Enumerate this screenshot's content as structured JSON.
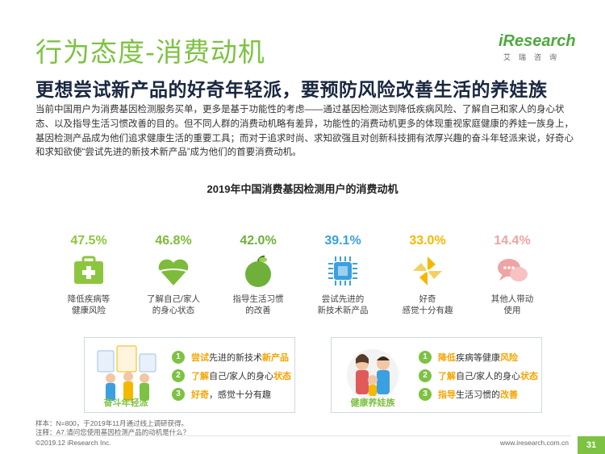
{
  "header": {
    "title": "行为态度-消费动机",
    "logo_text": "iResearch",
    "logo_sub": "艾瑞咨询"
  },
  "subtitle": "更想尝试新产品的好奇年轻派，要预防风险改善生活的养娃族",
  "body_text": "当前中国用户为消费基因检测服务买单，更多是基于功能性的考虑——通过基因检测达到降低疾病风险、了解自己和家人的身心状态、以及指导生活习惯改善的目的。但不同人群的消费动机略有差异，功能性的消费动机更多的体现重视家庭健康的养娃一族身上，基因检测产品成为他们追求健康生活的重要工具；而对于追求时尚、求知欲强且对创新科技拥有浓厚兴趣的奋斗年轻派来说，好奇心和求知欲使“尝试先进的新技术新产品”成为他们的首要消费动机。",
  "chart_data": {
    "type": "bar",
    "title": "2019年中国消费基因检测用户的消费动机",
    "categories": [
      "降低疾病等\n健康风险",
      "了解自己/家人\n的身心状态",
      "指导生活习惯\n的改善",
      "尝试先进的\n新技术新产品",
      "好奇\n感觉十分有趣",
      "其他人带动\n使用"
    ],
    "values": [
      47.5,
      46.8,
      42.0,
      39.1,
      33.0,
      14.4
    ],
    "value_labels": [
      "47.5%",
      "46.8%",
      "42.0%",
      "39.1%",
      "33.0%",
      "14.4%"
    ],
    "colors": [
      "#8cc63f",
      "#7dbb3a",
      "#6fb03a",
      "#3aa0e0",
      "#f5b800",
      "#f0a3a3"
    ],
    "icons": [
      "medical-kit-icon",
      "heart-icon",
      "apple-icon",
      "chip-icon",
      "pinwheel-icon",
      "chat-bubbles-icon"
    ]
  },
  "cards": {
    "left": {
      "tag": "奋斗年轻派",
      "items": [
        {
          "num": "1",
          "hl1": "尝试",
          "mid": "先进的新技术",
          "hl2": "新产品",
          "tail": ""
        },
        {
          "num": "2",
          "hl1": "了解",
          "mid": "自己/家人的身心",
          "hl2": "状态",
          "tail": ""
        },
        {
          "num": "3",
          "hl1": "好奇",
          "mid": "，感觉十分有趣",
          "hl2": "",
          "tail": ""
        }
      ]
    },
    "right": {
      "tag": "健康养娃族",
      "items": [
        {
          "num": "1",
          "hl1": "降低",
          "mid": "疾病等健康",
          "hl2": "风险",
          "tail": ""
        },
        {
          "num": "2",
          "hl1": "了解",
          "mid": "自己/家人的身心",
          "hl2": "状态",
          "tail": ""
        },
        {
          "num": "3",
          "hl1": "指导",
          "mid": "生活习惯的",
          "hl2": "改善",
          "tail": ""
        }
      ]
    }
  },
  "notes": {
    "sample": "样本：N=800，于2019年11月通过线上调研获得。",
    "question": "注释：A7.请问您使用基因检测产品的动机是什么？"
  },
  "footer": {
    "copyright": "©2019.12 iResearch Inc.",
    "url": "www.iresearch.com.cn",
    "page": "31"
  }
}
